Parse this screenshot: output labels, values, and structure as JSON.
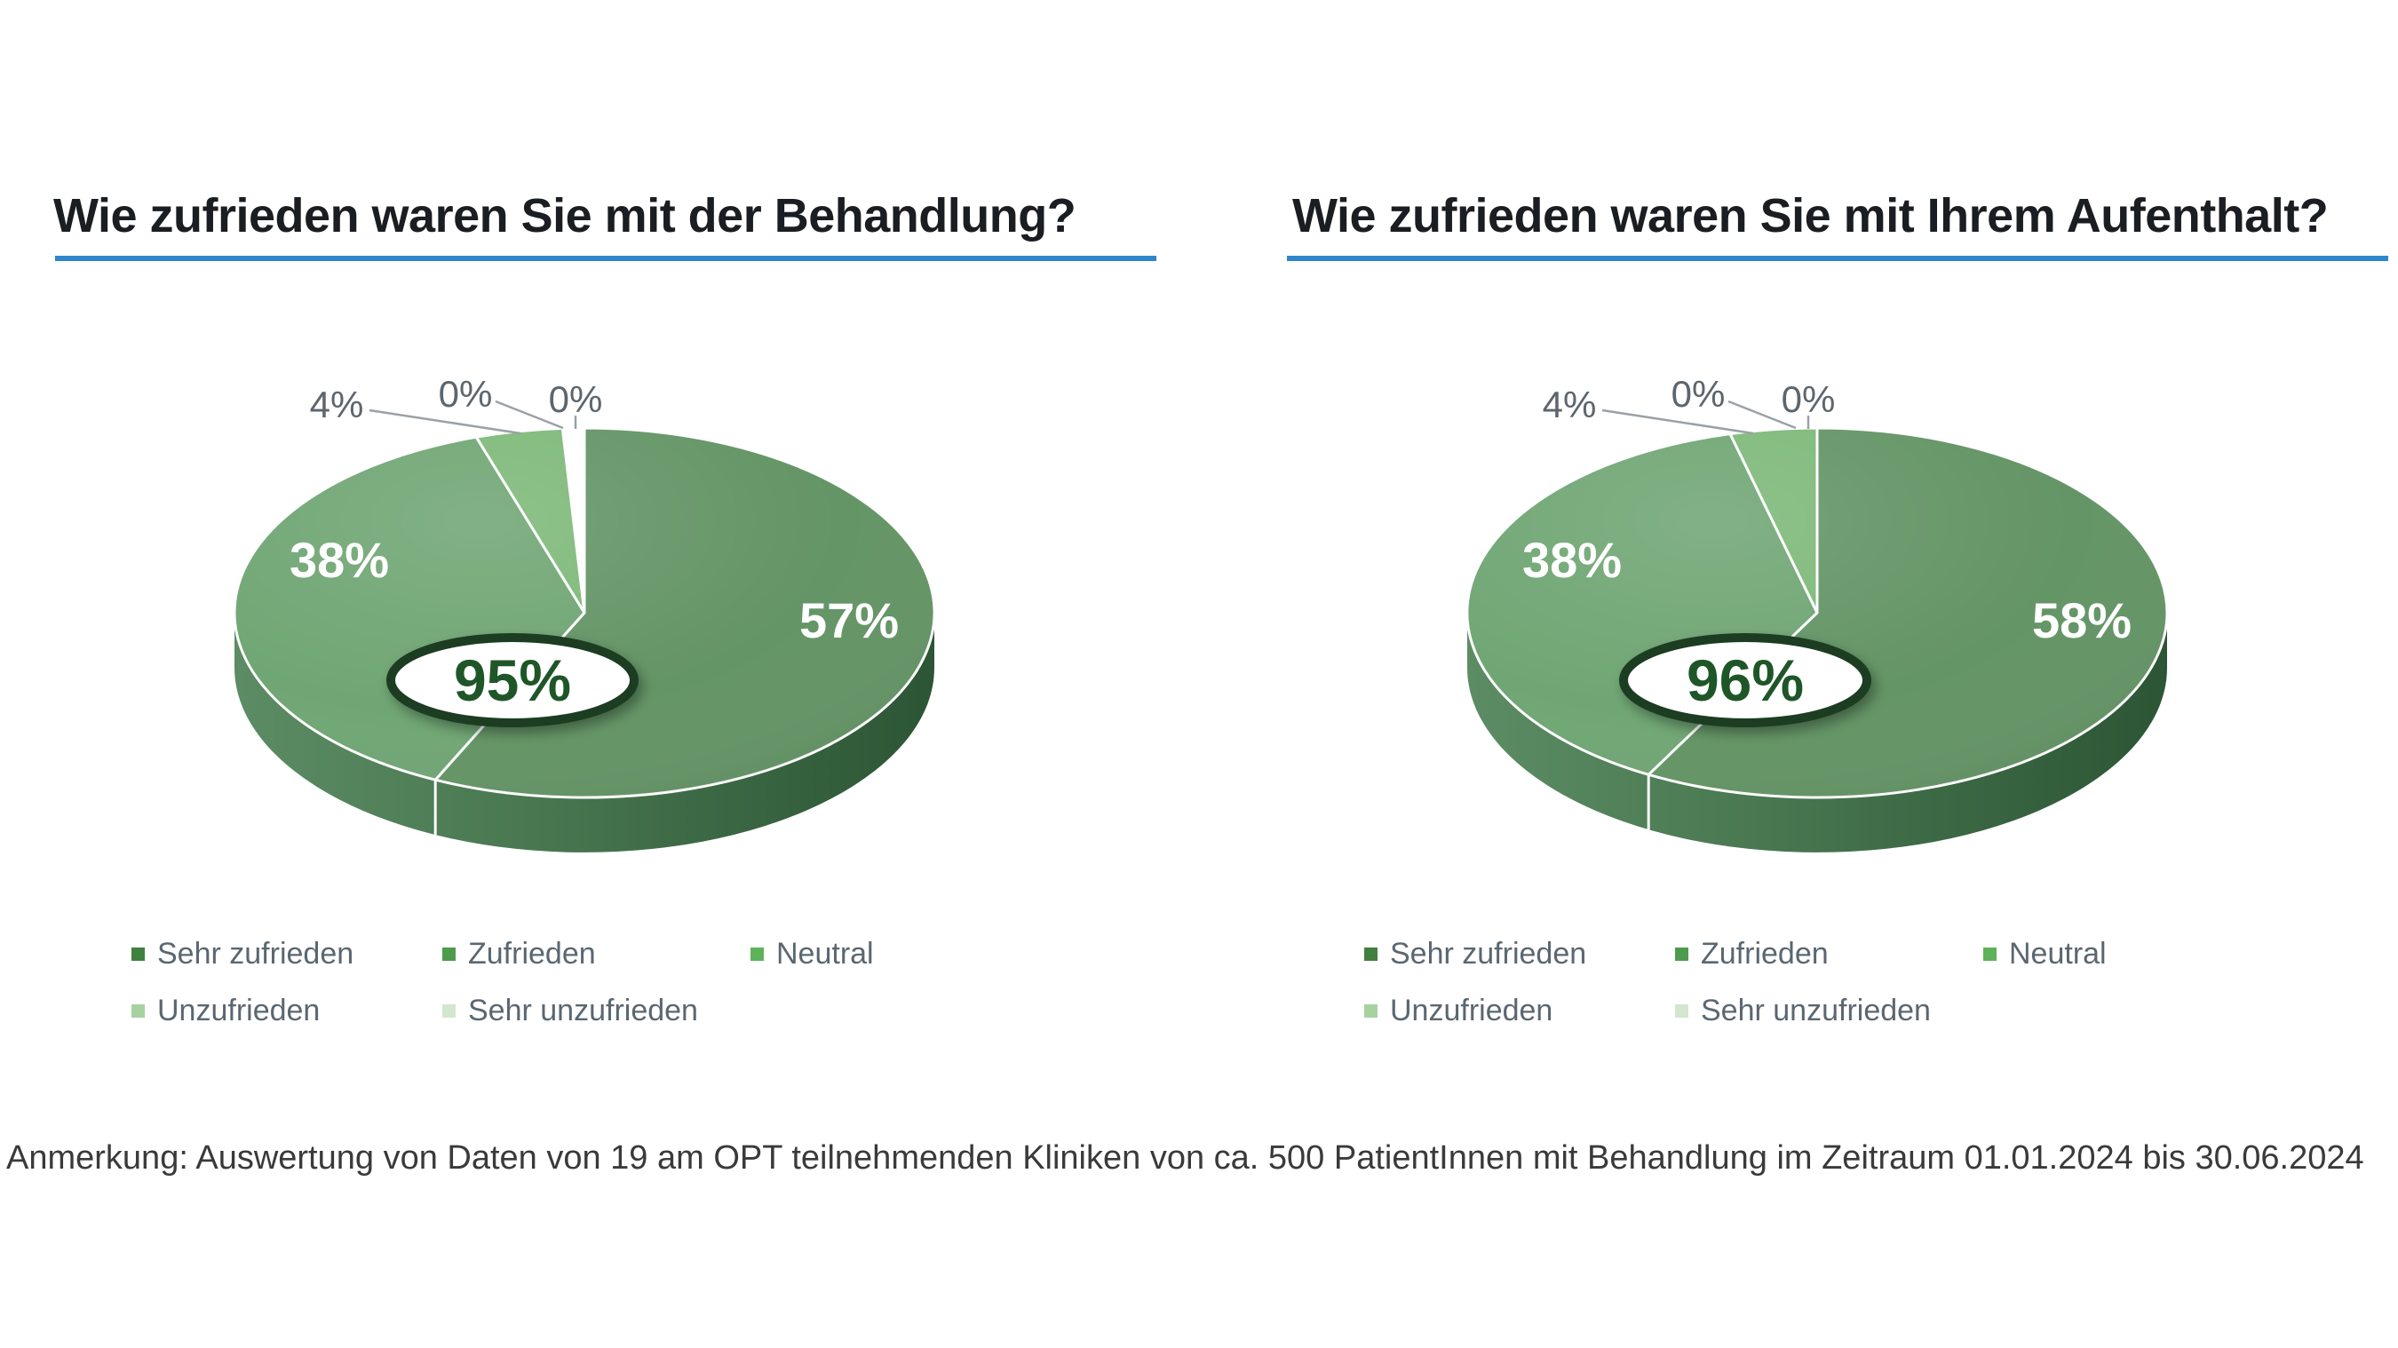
{
  "chart_data": [
    {
      "type": "pie",
      "style": "3d",
      "title": "Wie zufrieden waren Sie mit der Behandlung?",
      "categories": [
        "Sehr zufrieden",
        "Zufrieden",
        "Neutral",
        "Unzufrieden",
        "Sehr unzufrieden"
      ],
      "values": [
        57,
        38,
        4,
        0,
        0
      ],
      "unit": "%",
      "center_badge": "95%",
      "slice_colors": [
        "#649566",
        "#70a674",
        "#7eb979",
        "#a7d2a0",
        "#d2e7cd"
      ],
      "legend_position": "bottom"
    },
    {
      "type": "pie",
      "style": "3d",
      "title": "Wie zufrieden waren Sie mit Ihrem Aufenthalt?",
      "categories": [
        "Sehr zufrieden",
        "Zufrieden",
        "Neutral",
        "Unzufrieden",
        "Sehr unzufrieden"
      ],
      "values": [
        58,
        38,
        4,
        0,
        0
      ],
      "unit": "%",
      "center_badge": "96%",
      "slice_colors": [
        "#649566",
        "#70a674",
        "#7eb979",
        "#a7d2a0",
        "#d2e7cd"
      ],
      "legend_position": "bottom"
    }
  ],
  "legend": {
    "items": [
      {
        "label": "Sehr zufrieden",
        "color": "#41803f"
      },
      {
        "label": "Zufrieden",
        "color": "#4f9b4e"
      },
      {
        "label": "Neutral",
        "color": "#5fb25a"
      },
      {
        "label": "Unzufrieden",
        "color": "#a7d2a0"
      },
      {
        "label": "Sehr unzufrieden",
        "color": "#d2e7cd"
      }
    ],
    "text_color": "#5a6771"
  },
  "styles": {
    "title_underline_color": "#2e86cb",
    "title_color": "#1a1d21",
    "outside_label_color": "#5d666d",
    "leader_line_color": "#9aa1a6",
    "badge_ring_color": "#1c3c23",
    "badge_text_color": "#1f5628",
    "wall_dark": "#2c5535",
    "wall_light": "#5c8c64",
    "footer_color": "#3a3a3a"
  },
  "footer": {
    "text": "Anmerkung: Auswertung von Daten von 19 am OPT teilnehmenden Kliniken von ca. 500 PatientInnen mit Behandlung im Zeitraum 01.01.2024 bis 30.06.2024"
  }
}
